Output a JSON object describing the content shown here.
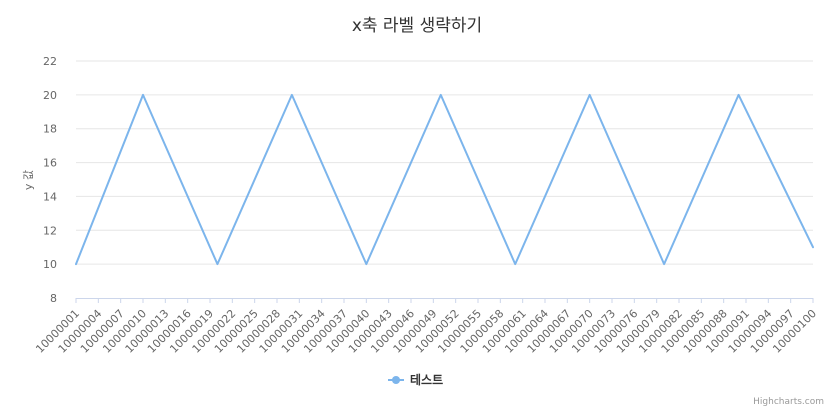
{
  "chart_data": {
    "type": "line",
    "title": "x축 라벨 생략하기",
    "ylabel": "y 값",
    "ylim": [
      8,
      22
    ],
    "yticks": [
      8,
      10,
      12,
      14,
      16,
      18,
      20,
      22
    ],
    "x_start": 10000001,
    "x_end": 10000100,
    "x_tick_labels": [
      "10000001",
      "10000004",
      "10000007",
      "10000010",
      "10000013",
      "10000016",
      "10000019",
      "10000022",
      "10000025",
      "10000028",
      "10000031",
      "10000034",
      "10000037",
      "10000040",
      "10000043",
      "10000046",
      "10000049",
      "10000052",
      "10000055",
      "10000058",
      "10000061",
      "10000064",
      "10000067",
      "10000070",
      "10000073",
      "10000076",
      "10000079",
      "10000082",
      "10000085",
      "10000088",
      "10000091",
      "10000094",
      "10000097",
      "10000100"
    ],
    "grid": true,
    "legend_position": "bottom-center",
    "series": [
      {
        "name": "테스트",
        "color": "#7cb5ec",
        "points": [
          {
            "x": 10000001,
            "y": 10
          },
          {
            "x": 10000010,
            "y": 20
          },
          {
            "x": 10000020,
            "y": 10
          },
          {
            "x": 10000030,
            "y": 20
          },
          {
            "x": 10000040,
            "y": 10
          },
          {
            "x": 10000050,
            "y": 20
          },
          {
            "x": 10000060,
            "y": 10
          },
          {
            "x": 10000070,
            "y": 20
          },
          {
            "x": 10000080,
            "y": 10
          },
          {
            "x": 10000090,
            "y": 20
          },
          {
            "x": 10000100,
            "y": 11
          }
        ]
      }
    ]
  },
  "credits": "Highcharts.com"
}
